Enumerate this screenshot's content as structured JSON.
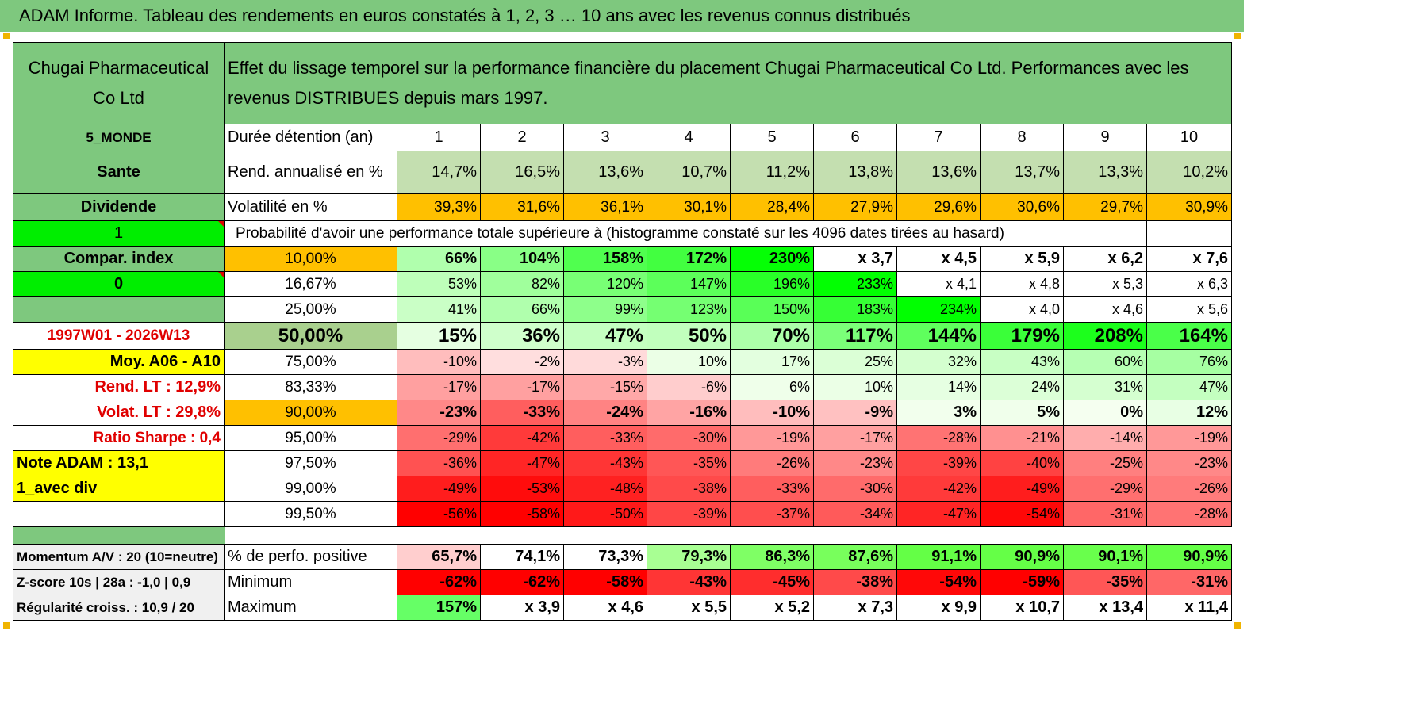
{
  "title": "ADAM Informe. Tableau des rendements en euros constatés à 1, 2, 3 … 10 ans avec les revenus connus distribués",
  "header": {
    "company": "Chugai Pharmaceutical Co Ltd",
    "description": "Effet du lissage temporel sur la performance financière du placement Chugai Pharmaceutical Co Ltd. Performances avec les revenus DISTRIBUES depuis mars 1997."
  },
  "years_row": {
    "left": "5_MONDE",
    "label": "Durée détention (an)",
    "cols": [
      "1",
      "2",
      "3",
      "4",
      "5",
      "6",
      "7",
      "8",
      "9",
      "10"
    ]
  },
  "rend_row": {
    "left": "Sante",
    "label": "Rend. annualisé en %",
    "cols": [
      "14,7%",
      "16,5%",
      "13,6%",
      "10,7%",
      "11,2%",
      "13,8%",
      "13,6%",
      "13,7%",
      "13,3%",
      "10,2%"
    ]
  },
  "vol_row": {
    "left": "Dividende",
    "label": "Volatilité en %",
    "cols": [
      "39,3%",
      "31,6%",
      "36,1%",
      "30,1%",
      "28,4%",
      "27,9%",
      "29,6%",
      "30,6%",
      "29,7%",
      "30,9%"
    ]
  },
  "prob_row": {
    "left": "1",
    "text": "Probabilité d'avoir une performance totale supérieure à (histogramme constaté sur les 4096 dates tirées au hasard)"
  },
  "prob_rows": [
    {
      "left": "Compar. index",
      "pct": "10,00%",
      "cols": [
        "66%",
        "104%",
        "158%",
        "172%",
        "230%",
        "x 3,7",
        "x 4,5",
        "x 5,9",
        "x 6,2",
        "x 7,6"
      ]
    },
    {
      "left": "0",
      "pct": "16,67%",
      "cols": [
        "53%",
        "82%",
        "120%",
        "147%",
        "196%",
        "233%",
        "x 4,1",
        "x 4,8",
        "x 5,3",
        "x 6,3"
      ]
    },
    {
      "left": "",
      "pct": "25,00%",
      "cols": [
        "41%",
        "66%",
        "99%",
        "123%",
        "150%",
        "183%",
        "234%",
        "x 4,0",
        "x 4,6",
        "x 5,6"
      ]
    },
    {
      "left": "1997W01 - 2026W13",
      "pct": "50,00%",
      "cols": [
        "15%",
        "36%",
        "47%",
        "50%",
        "70%",
        "117%",
        "144%",
        "179%",
        "208%",
        "164%"
      ]
    },
    {
      "left": "Moy. A06 - A10",
      "pct": "75,00%",
      "cols": [
        "-10%",
        "-2%",
        "-3%",
        "10%",
        "17%",
        "25%",
        "32%",
        "43%",
        "60%",
        "76%"
      ]
    },
    {
      "left": "Rend. LT :    12,9%",
      "pct": "83,33%",
      "cols": [
        "-17%",
        "-17%",
        "-15%",
        "-6%",
        "6%",
        "10%",
        "14%",
        "24%",
        "31%",
        "47%"
      ]
    },
    {
      "left": "Volat. LT :    29,8%",
      "pct": "90,00%",
      "cols": [
        "-23%",
        "-33%",
        "-24%",
        "-16%",
        "-10%",
        "-9%",
        "3%",
        "5%",
        "0%",
        "12%"
      ]
    },
    {
      "left": "Ratio Sharpe :    0,4",
      "pct": "95,00%",
      "cols": [
        "-29%",
        "-42%",
        "-33%",
        "-30%",
        "-19%",
        "-17%",
        "-28%",
        "-21%",
        "-14%",
        "-19%"
      ]
    },
    {
      "left": "Note ADAM : 13,1",
      "pct": "97,50%",
      "cols": [
        "-36%",
        "-47%",
        "-43%",
        "-35%",
        "-26%",
        "-23%",
        "-39%",
        "-40%",
        "-25%",
        "-23%"
      ]
    },
    {
      "left": "1_avec div",
      "pct": "99,00%",
      "cols": [
        "-49%",
        "-53%",
        "-48%",
        "-38%",
        "-33%",
        "-30%",
        "-42%",
        "-49%",
        "-29%",
        "-26%"
      ]
    },
    {
      "left": "",
      "pct": "99,50%",
      "cols": [
        "-56%",
        "-58%",
        "-50%",
        "-39%",
        "-37%",
        "-34%",
        "-47%",
        "-54%",
        "-31%",
        "-28%"
      ]
    }
  ],
  "bottom_rows": [
    {
      "left": "Momentum A/V : 20 (10=neutre)",
      "label": "% de perfo. positive",
      "cols": [
        "65,7%",
        "74,1%",
        "73,3%",
        "79,3%",
        "86,3%",
        "87,6%",
        "91,1%",
        "90,9%",
        "90,1%",
        "90,9%"
      ]
    },
    {
      "left": "Z-score 10s | 28a : -1,0 | 0,9",
      "label": "Minimum",
      "cols": [
        "-62%",
        "-62%",
        "-58%",
        "-43%",
        "-45%",
        "-38%",
        "-54%",
        "-59%",
        "-35%",
        "-31%"
      ]
    },
    {
      "left": "Régularité croiss. : 10,9 / 20",
      "label": "Maximum",
      "cols": [
        "157%",
        "x 3,9",
        "x 4,6",
        "x 5,5",
        "x 5,2",
        "x 7,3",
        "x 9,9",
        "x 10,7",
        "x 13,4",
        "x 11,4"
      ]
    }
  ],
  "colors": {
    "title_green": "#7ec87e",
    "bright_green": "#00ee00",
    "yellow": "#ffff00",
    "orange": "#ffc000",
    "red_text": "#e00000",
    "rend_green": "#c4dfb0"
  }
}
